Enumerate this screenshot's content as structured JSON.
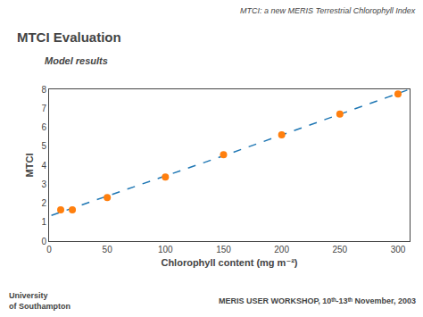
{
  "chart_data": {
    "type": "scatter",
    "title": "MTCI Evaluation",
    "subtitle": "Model results",
    "x_label": "Chlorophyll content (mg m⁻²)",
    "y_label": "MTCI",
    "annotations": [
      "MTCI: a new MERIS Terrestrial Chlorophyll Index",
      "University",
      "of Southampton",
      "MERIS USER WORKSHOP, 10ᵗʰ-13ᵗʰ November, 2003"
    ],
    "series": [
      {
        "type": "line",
        "line_style": "dashed",
        "x": [
          2,
          19,
          36,
          53,
          70,
          87,
          104,
          121,
          138,
          155,
          172,
          189,
          206,
          223,
          240,
          257,
          274,
          291,
          308
        ],
        "values": [
          1.354,
          1.71,
          2.068,
          2.427,
          2.787,
          3.149,
          3.512,
          3.875,
          4.241,
          4.607,
          4.974,
          5.343,
          5.713,
          6.084,
          6.456,
          6.83,
          7.205,
          7.581,
          7.958
        ]
      },
      {
        "type": "scatter",
        "marker": "circle",
        "x": [
          10,
          20,
          50,
          100,
          150,
          200,
          250,
          300
        ],
        "values": [
          1.65,
          1.65,
          2.3,
          3.38,
          4.55,
          5.6,
          6.7,
          7.75
        ]
      }
    ],
    "xlim": [
      0,
      310
    ],
    "xticks": [
      0,
      50,
      100,
      150,
      200,
      250,
      300
    ],
    "ylim": [
      0,
      8
    ],
    "yticks": [
      0,
      1,
      2,
      3,
      4,
      5,
      6,
      7,
      8
    ],
    "grid": false
  }
}
